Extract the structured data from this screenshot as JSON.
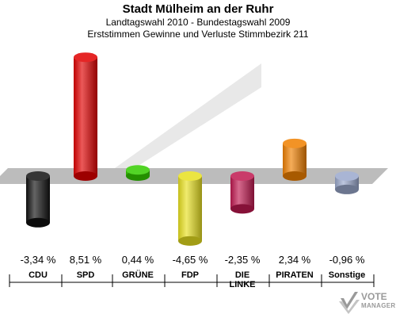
{
  "header": {
    "title": "Stadt Mülheim an der Ruhr",
    "subtitle1": "Landtagswahl 2010 - Bundestagswahl 2009",
    "subtitle2": "Erststimmen Gewinne und Verluste Stimmbezirk 211"
  },
  "chart_data": {
    "type": "bar",
    "categories": [
      "CDU",
      "SPD",
      "GRÜNE",
      "FDP",
      "DIE LINKE",
      "PIRATEN",
      "Sonstige"
    ],
    "values": [
      -3.34,
      8.51,
      0.44,
      -4.65,
      -2.35,
      2.34,
      -0.96
    ],
    "value_labels": [
      "-3,34 %",
      "8,51 %",
      "0,44 %",
      "-4,65 %",
      "-2,35 %",
      "2,34 %",
      "-0,96 %"
    ],
    "colors": [
      "#111111",
      "#e00000",
      "#33cc00",
      "#e8e020",
      "#c01850",
      "#f08000",
      "#9aa8cc"
    ],
    "ylim": [
      -4.65,
      8.51
    ],
    "grid": false,
    "legend": "none"
  },
  "logo": {
    "line1": "VOTE",
    "line2": "MANAGER"
  }
}
